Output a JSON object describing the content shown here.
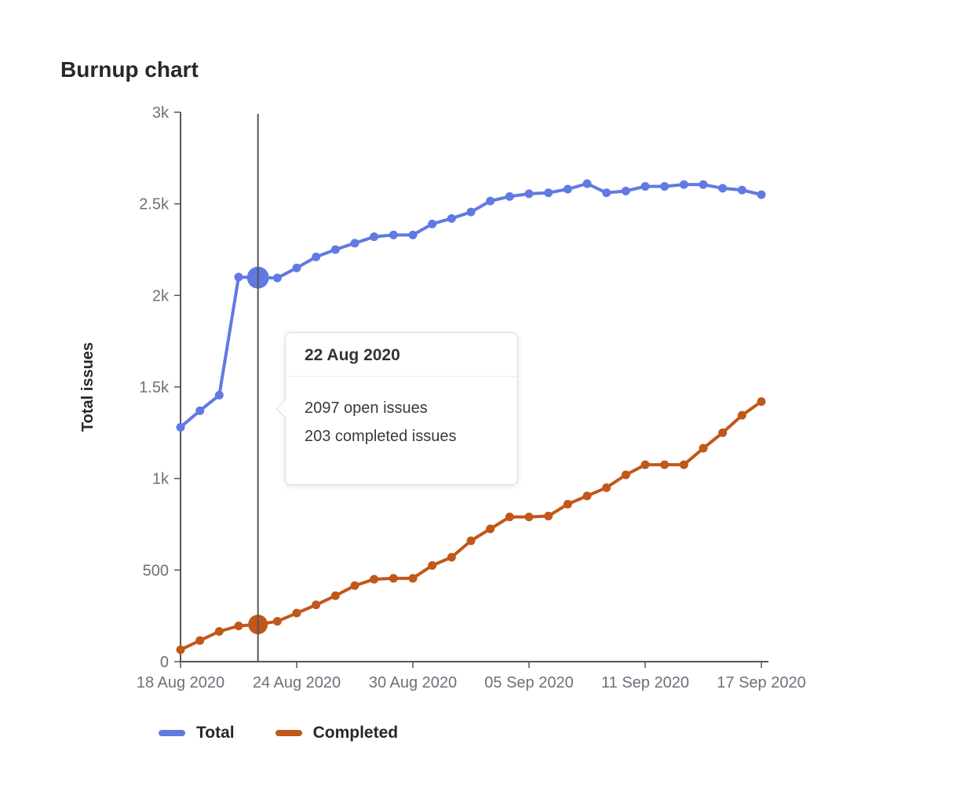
{
  "header": {
    "title": "Burnup chart"
  },
  "chart_data": {
    "type": "line",
    "title": "Burnup chart",
    "xlabel": "",
    "ylabel": "Total issues",
    "ylim": [
      0,
      3000
    ],
    "grid": false,
    "legend_position": "bottom",
    "y_ticks": [
      {
        "value": 0,
        "label": "0"
      },
      {
        "value": 500,
        "label": "500"
      },
      {
        "value": 1000,
        "label": "1k"
      },
      {
        "value": 1500,
        "label": "1.5k"
      },
      {
        "value": 2000,
        "label": "2k"
      },
      {
        "value": 2500,
        "label": "2.5k"
      },
      {
        "value": 3000,
        "label": "3k"
      }
    ],
    "x": [
      "18 Aug 2020",
      "19 Aug 2020",
      "20 Aug 2020",
      "21 Aug 2020",
      "22 Aug 2020",
      "23 Aug 2020",
      "24 Aug 2020",
      "25 Aug 2020",
      "26 Aug 2020",
      "27 Aug 2020",
      "28 Aug 2020",
      "29 Aug 2020",
      "30 Aug 2020",
      "31 Aug 2020",
      "01 Sep 2020",
      "02 Sep 2020",
      "03 Sep 2020",
      "04 Sep 2020",
      "05 Sep 2020",
      "06 Sep 2020",
      "07 Sep 2020",
      "08 Sep 2020",
      "09 Sep 2020",
      "10 Sep 2020",
      "11 Sep 2020",
      "12 Sep 2020",
      "13 Sep 2020",
      "14 Sep 2020",
      "15 Sep 2020",
      "16 Sep 2020",
      "17 Sep 2020"
    ],
    "x_tick_indices": [
      0,
      6,
      12,
      18,
      24,
      30
    ],
    "x_tick_labels": [
      "18 Aug 2020",
      "24 Aug 2020",
      "30 Aug 2020",
      "05 Sep 2020",
      "11 Sep 2020",
      "17 Sep 2020"
    ],
    "series": [
      {
        "name": "Total",
        "color": "#617ae2",
        "values": [
          1280,
          1370,
          1455,
          2100,
          2097,
          2095,
          2150,
          2210,
          2250,
          2285,
          2320,
          2330,
          2330,
          2390,
          2420,
          2455,
          2515,
          2540,
          2555,
          2560,
          2580,
          2610,
          2560,
          2570,
          2595,
          2595,
          2605,
          2605,
          2585,
          2575,
          2550
        ]
      },
      {
        "name": "Completed",
        "color": "#c1571a",
        "values": [
          65,
          115,
          165,
          195,
          203,
          220,
          265,
          310,
          360,
          415,
          450,
          455,
          455,
          525,
          570,
          660,
          725,
          790,
          790,
          795,
          860,
          905,
          950,
          1020,
          1075,
          1075,
          1075,
          1165,
          1250,
          1345,
          1420
        ]
      }
    ],
    "marker": {
      "index": 4,
      "date": "22 Aug 2020",
      "line_color": "#555555"
    }
  },
  "tooltip": {
    "title": "22 Aug 2020",
    "lines": [
      "2097 open issues",
      "203 completed issues"
    ]
  },
  "legend": {
    "items": [
      {
        "label": "Total",
        "color": "#617ae2"
      },
      {
        "label": "Completed",
        "color": "#c1571a"
      }
    ]
  },
  "colors": {
    "axis_line": "#54565b",
    "axis_text": "#6e7079",
    "heading_text": "#28272d",
    "tooltip_border": "#dcdcde"
  }
}
